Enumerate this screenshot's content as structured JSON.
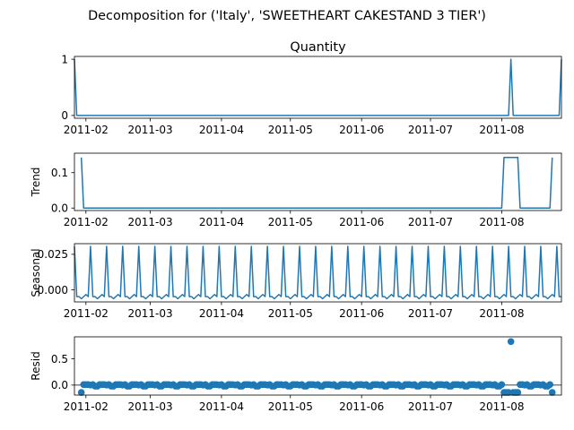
{
  "figure": {
    "suptitle": "Decomposition for ('Italy', 'SWEETHEART CAKESTAND 3 TIER')"
  },
  "chart_data": [
    {
      "type": "line",
      "title": "Quantity",
      "ylabel": "",
      "x_range": [
        "2011-01-27",
        "2011-08-27"
      ],
      "ylim": [
        -0.05,
        1.05
      ],
      "yticks": [
        0,
        1
      ],
      "ytick_labels": [
        "0",
        "1"
      ],
      "xticks": [
        "2011-02-01",
        "2011-03-01",
        "2011-04-01",
        "2011-05-01",
        "2011-06-01",
        "2011-07-01",
        "2011-08-01"
      ],
      "xtick_labels": [
        "2011-02",
        "2011-03",
        "2011-04",
        "2011-05",
        "2011-06",
        "2011-07",
        "2011-08"
      ],
      "color": "#1f77b4",
      "points": [
        [
          "2011-01-27",
          1
        ],
        [
          "2011-01-28",
          0
        ],
        [
          "2011-08-04",
          0
        ],
        [
          "2011-08-05",
          1
        ],
        [
          "2011-08-06",
          0
        ],
        [
          "2011-08-26",
          0
        ],
        [
          "2011-08-27",
          1
        ]
      ]
    },
    {
      "type": "line",
      "title": "",
      "ylabel": "Trend",
      "x_range": [
        "2011-01-27",
        "2011-08-27"
      ],
      "ylim": [
        -0.007,
        0.155
      ],
      "yticks": [
        0,
        0.1
      ],
      "ytick_labels": [
        "0.0",
        "0.1"
      ],
      "xticks": [
        "2011-02-01",
        "2011-03-01",
        "2011-04-01",
        "2011-05-01",
        "2011-06-01",
        "2011-07-01",
        "2011-08-01"
      ],
      "xtick_labels": [
        "2011-02",
        "2011-03",
        "2011-04",
        "2011-05",
        "2011-06",
        "2011-07",
        "2011-08"
      ],
      "color": "#1f77b4",
      "points": [
        [
          "2011-01-30",
          0.1429
        ],
        [
          "2011-01-31",
          0
        ],
        [
          "2011-08-01",
          0
        ],
        [
          "2011-08-02",
          0.1429
        ],
        [
          "2011-08-08",
          0.1429
        ],
        [
          "2011-08-09",
          0
        ],
        [
          "2011-08-22",
          0
        ],
        [
          "2011-08-23",
          0.1429
        ]
      ]
    },
    {
      "type": "line",
      "title": "",
      "ylabel": "Seasonal",
      "x_range": [
        "2011-01-27",
        "2011-08-27"
      ],
      "ylim": [
        -0.0085,
        0.0325
      ],
      "yticks": [
        0,
        0.025
      ],
      "ytick_labels": [
        "0.000",
        "0.025"
      ],
      "xticks": [
        "2011-02-01",
        "2011-03-01",
        "2011-04-01",
        "2011-05-01",
        "2011-06-01",
        "2011-07-01",
        "2011-08-01"
      ],
      "xtick_labels": [
        "2011-02",
        "2011-03",
        "2011-04",
        "2011-05",
        "2011-06",
        "2011-07",
        "2011-08"
      ],
      "color": "#1f77b4",
      "start": "2011-01-27",
      "period_values": [
        0.0306,
        -0.0048,
        -0.0048,
        -0.0063,
        -0.0048,
        -0.0033,
        -0.0048
      ]
    },
    {
      "type": "scatter",
      "title": "",
      "ylabel": "Resid",
      "x_range": [
        "2011-01-27",
        "2011-08-27"
      ],
      "ylim": [
        -0.19,
        0.92
      ],
      "yticks": [
        0,
        0.5
      ],
      "ytick_labels": [
        "0.0",
        "0.5"
      ],
      "xticks": [
        "2011-02-01",
        "2011-03-01",
        "2011-04-01",
        "2011-05-01",
        "2011-06-01",
        "2011-07-01",
        "2011-08-01"
      ],
      "xtick_labels": [
        "2011-02",
        "2011-03",
        "2011-04",
        "2011-05",
        "2011-06",
        "2011-07",
        "2011-08"
      ],
      "color": "#1f77b4",
      "zero_line": true,
      "points": [
        [
          "2011-01-30",
          -0.14
        ],
        [
          "2011-01-31",
          0.01
        ],
        [
          "2011-02-01",
          0.01
        ],
        [
          "2011-02-02",
          0.01
        ],
        [
          "2011-02-03",
          0.0
        ],
        [
          "2011-02-04",
          0.01
        ],
        [
          "2011-02-05",
          -0.02
        ],
        [
          "2011-02-06",
          -0.02
        ],
        [
          "2011-02-07",
          0.01
        ],
        [
          "2011-02-08",
          0.01
        ],
        [
          "2011-02-09",
          0.01
        ],
        [
          "2011-02-10",
          0.0
        ],
        [
          "2011-02-11",
          0.01
        ],
        [
          "2011-02-12",
          -0.02
        ],
        [
          "2011-02-13",
          -0.02
        ],
        [
          "2011-02-14",
          0.01
        ],
        [
          "2011-02-15",
          0.01
        ],
        [
          "2011-02-16",
          0.01
        ],
        [
          "2011-02-17",
          0.0
        ],
        [
          "2011-02-18",
          0.01
        ],
        [
          "2011-02-19",
          -0.02
        ],
        [
          "2011-02-20",
          -0.02
        ],
        [
          "2011-02-21",
          0.01
        ],
        [
          "2011-02-22",
          0.01
        ],
        [
          "2011-02-23",
          0.01
        ],
        [
          "2011-02-24",
          0.0
        ],
        [
          "2011-02-25",
          0.01
        ],
        [
          "2011-02-26",
          -0.02
        ],
        [
          "2011-02-27",
          -0.02
        ],
        [
          "2011-02-28",
          0.01
        ],
        [
          "2011-03-01",
          0.01
        ],
        [
          "2011-03-02",
          0.01
        ],
        [
          "2011-03-03",
          0.0
        ],
        [
          "2011-03-04",
          0.01
        ],
        [
          "2011-03-05",
          -0.02
        ],
        [
          "2011-03-06",
          -0.02
        ],
        [
          "2011-03-07",
          0.01
        ],
        [
          "2011-03-08",
          0.01
        ],
        [
          "2011-03-09",
          0.01
        ],
        [
          "2011-03-10",
          0.0
        ],
        [
          "2011-03-11",
          0.01
        ],
        [
          "2011-03-12",
          -0.02
        ],
        [
          "2011-03-13",
          -0.02
        ],
        [
          "2011-03-14",
          0.01
        ],
        [
          "2011-03-15",
          0.01
        ],
        [
          "2011-03-16",
          0.01
        ],
        [
          "2011-03-17",
          0.0
        ],
        [
          "2011-03-18",
          0.01
        ],
        [
          "2011-03-19",
          -0.02
        ],
        [
          "2011-03-20",
          -0.02
        ],
        [
          "2011-03-21",
          0.01
        ],
        [
          "2011-03-22",
          0.01
        ],
        [
          "2011-03-23",
          0.01
        ],
        [
          "2011-03-24",
          0.0
        ],
        [
          "2011-03-25",
          0.01
        ],
        [
          "2011-03-26",
          -0.02
        ],
        [
          "2011-03-27",
          -0.02
        ],
        [
          "2011-03-28",
          0.01
        ],
        [
          "2011-03-29",
          0.01
        ],
        [
          "2011-03-30",
          0.01
        ],
        [
          "2011-03-31",
          0.0
        ],
        [
          "2011-04-01",
          0.01
        ],
        [
          "2011-04-02",
          -0.02
        ],
        [
          "2011-04-03",
          -0.02
        ],
        [
          "2011-04-04",
          0.01
        ],
        [
          "2011-04-05",
          0.01
        ],
        [
          "2011-04-06",
          0.01
        ],
        [
          "2011-04-07",
          0.0
        ],
        [
          "2011-04-08",
          0.01
        ],
        [
          "2011-04-09",
          -0.02
        ],
        [
          "2011-04-10",
          -0.02
        ],
        [
          "2011-04-11",
          0.01
        ],
        [
          "2011-04-12",
          0.01
        ],
        [
          "2011-04-13",
          0.01
        ],
        [
          "2011-04-14",
          0.0
        ],
        [
          "2011-04-15",
          0.01
        ],
        [
          "2011-04-16",
          -0.02
        ],
        [
          "2011-04-17",
          -0.02
        ],
        [
          "2011-04-18",
          0.01
        ],
        [
          "2011-04-19",
          0.01
        ],
        [
          "2011-04-20",
          0.01
        ],
        [
          "2011-04-21",
          0.0
        ],
        [
          "2011-04-22",
          0.01
        ],
        [
          "2011-04-23",
          -0.02
        ],
        [
          "2011-04-24",
          -0.02
        ],
        [
          "2011-04-25",
          0.01
        ],
        [
          "2011-04-26",
          0.01
        ],
        [
          "2011-04-27",
          0.01
        ],
        [
          "2011-04-28",
          0.0
        ],
        [
          "2011-04-29",
          0.01
        ],
        [
          "2011-04-30",
          -0.02
        ],
        [
          "2011-05-01",
          -0.02
        ],
        [
          "2011-05-02",
          0.01
        ],
        [
          "2011-05-03",
          0.01
        ],
        [
          "2011-05-04",
          0.01
        ],
        [
          "2011-05-05",
          0.0
        ],
        [
          "2011-05-06",
          0.01
        ],
        [
          "2011-05-07",
          -0.02
        ],
        [
          "2011-05-08",
          -0.02
        ],
        [
          "2011-05-09",
          0.01
        ],
        [
          "2011-05-10",
          0.01
        ],
        [
          "2011-05-11",
          0.01
        ],
        [
          "2011-05-12",
          0.0
        ],
        [
          "2011-05-13",
          0.01
        ],
        [
          "2011-05-14",
          -0.02
        ],
        [
          "2011-05-15",
          -0.02
        ],
        [
          "2011-05-16",
          0.01
        ],
        [
          "2011-05-17",
          0.01
        ],
        [
          "2011-05-18",
          0.01
        ],
        [
          "2011-05-19",
          0.0
        ],
        [
          "2011-05-20",
          0.01
        ],
        [
          "2011-05-21",
          -0.02
        ],
        [
          "2011-05-22",
          -0.02
        ],
        [
          "2011-05-23",
          0.01
        ],
        [
          "2011-05-24",
          0.01
        ],
        [
          "2011-05-25",
          0.01
        ],
        [
          "2011-05-26",
          0.0
        ],
        [
          "2011-05-27",
          0.01
        ],
        [
          "2011-05-28",
          -0.02
        ],
        [
          "2011-05-29",
          -0.02
        ],
        [
          "2011-05-30",
          0.01
        ],
        [
          "2011-05-31",
          0.01
        ],
        [
          "2011-06-01",
          0.01
        ],
        [
          "2011-06-02",
          0.0
        ],
        [
          "2011-06-03",
          0.01
        ],
        [
          "2011-06-04",
          -0.02
        ],
        [
          "2011-06-05",
          -0.02
        ],
        [
          "2011-06-06",
          0.01
        ],
        [
          "2011-06-07",
          0.01
        ],
        [
          "2011-06-08",
          0.01
        ],
        [
          "2011-06-09",
          0.0
        ],
        [
          "2011-06-10",
          0.01
        ],
        [
          "2011-06-11",
          -0.02
        ],
        [
          "2011-06-12",
          -0.02
        ],
        [
          "2011-06-13",
          0.01
        ],
        [
          "2011-06-14",
          0.01
        ],
        [
          "2011-06-15",
          0.01
        ],
        [
          "2011-06-16",
          0.0
        ],
        [
          "2011-06-17",
          0.01
        ],
        [
          "2011-06-18",
          -0.02
        ],
        [
          "2011-06-19",
          -0.02
        ],
        [
          "2011-06-20",
          0.01
        ],
        [
          "2011-06-21",
          0.01
        ],
        [
          "2011-06-22",
          0.01
        ],
        [
          "2011-06-23",
          0.0
        ],
        [
          "2011-06-24",
          0.01
        ],
        [
          "2011-06-25",
          -0.02
        ],
        [
          "2011-06-26",
          -0.02
        ],
        [
          "2011-06-27",
          0.01
        ],
        [
          "2011-06-28",
          0.01
        ],
        [
          "2011-06-29",
          0.01
        ],
        [
          "2011-06-30",
          0.0
        ],
        [
          "2011-07-01",
          0.01
        ],
        [
          "2011-07-02",
          -0.02
        ],
        [
          "2011-07-03",
          -0.02
        ],
        [
          "2011-07-04",
          0.01
        ],
        [
          "2011-07-05",
          0.01
        ],
        [
          "2011-07-06",
          0.01
        ],
        [
          "2011-07-07",
          0.0
        ],
        [
          "2011-07-08",
          0.01
        ],
        [
          "2011-07-09",
          -0.02
        ],
        [
          "2011-07-10",
          -0.02
        ],
        [
          "2011-07-11",
          0.01
        ],
        [
          "2011-07-12",
          0.01
        ],
        [
          "2011-07-13",
          0.01
        ],
        [
          "2011-07-14",
          0.0
        ],
        [
          "2011-07-15",
          0.01
        ],
        [
          "2011-07-16",
          -0.02
        ],
        [
          "2011-07-17",
          -0.02
        ],
        [
          "2011-07-18",
          0.01
        ],
        [
          "2011-07-19",
          0.01
        ],
        [
          "2011-07-20",
          0.01
        ],
        [
          "2011-07-21",
          0.0
        ],
        [
          "2011-07-22",
          0.01
        ],
        [
          "2011-07-23",
          -0.02
        ],
        [
          "2011-07-24",
          -0.02
        ],
        [
          "2011-07-25",
          0.01
        ],
        [
          "2011-07-26",
          0.01
        ],
        [
          "2011-07-27",
          0.01
        ],
        [
          "2011-07-28",
          0.0
        ],
        [
          "2011-07-29",
          0.01
        ],
        [
          "2011-07-30",
          -0.02
        ],
        [
          "2011-07-31",
          -0.02
        ],
        [
          "2011-08-01",
          0.01
        ],
        [
          "2011-08-02",
          -0.14
        ],
        [
          "2011-08-03",
          -0.14
        ],
        [
          "2011-08-04",
          -0.14
        ],
        [
          "2011-08-05",
          0.83
        ],
        [
          "2011-08-06",
          -0.14
        ],
        [
          "2011-08-07",
          -0.14
        ],
        [
          "2011-08-08",
          -0.14
        ],
        [
          "2011-08-09",
          0.01
        ],
        [
          "2011-08-10",
          0.01
        ],
        [
          "2011-08-11",
          0.0
        ],
        [
          "2011-08-12",
          0.01
        ],
        [
          "2011-08-13",
          -0.02
        ],
        [
          "2011-08-14",
          -0.02
        ],
        [
          "2011-08-15",
          0.01
        ],
        [
          "2011-08-16",
          0.01
        ],
        [
          "2011-08-17",
          0.01
        ],
        [
          "2011-08-18",
          0.0
        ],
        [
          "2011-08-19",
          0.01
        ],
        [
          "2011-08-20",
          -0.02
        ],
        [
          "2011-08-21",
          -0.02
        ],
        [
          "2011-08-22",
          0.01
        ],
        [
          "2011-08-23",
          -0.14
        ]
      ]
    }
  ]
}
